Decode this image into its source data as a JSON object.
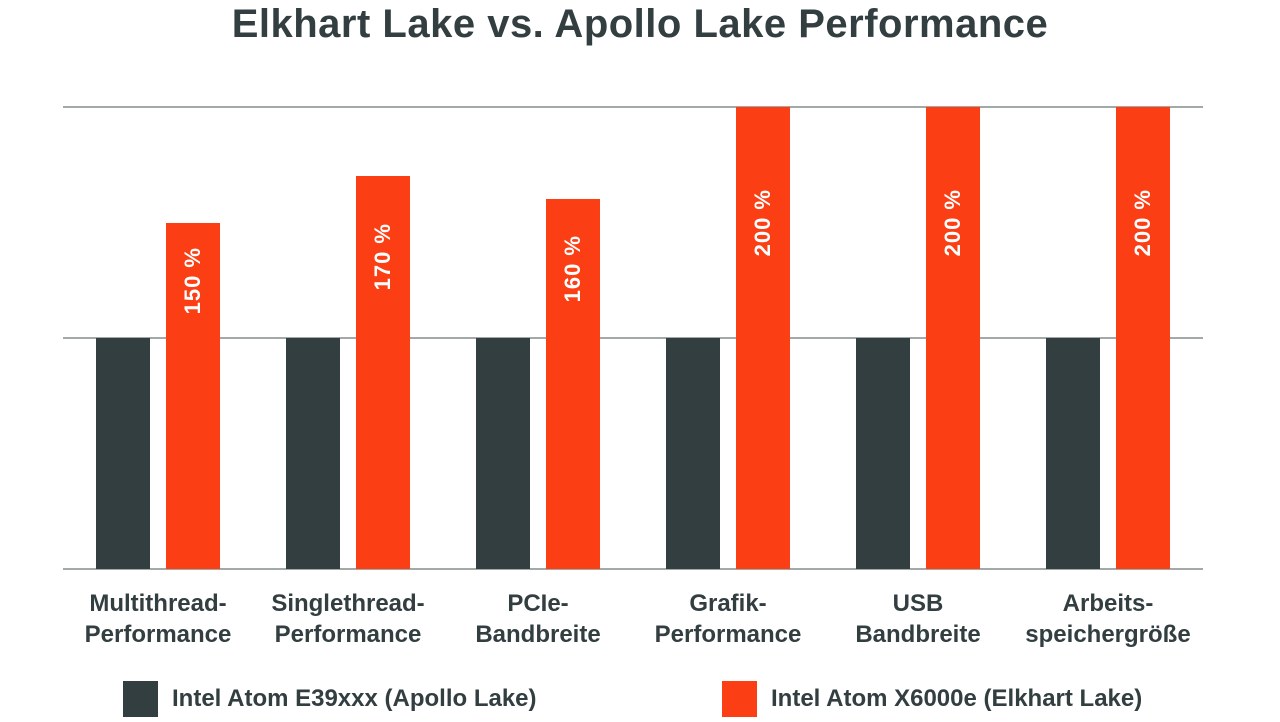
{
  "title": "Elkhart Lake vs. Apollo Lake Performance",
  "colors": {
    "background": "#FFFFFF",
    "dark_series": "#333E40",
    "orange_series": "#FB3E14",
    "gridline": "#A3A9A9",
    "text": "#333E40",
    "value_label_text": "#FFFFFF"
  },
  "chart_data": {
    "type": "bar",
    "title": "Elkhart Lake vs. Apollo Lake Performance",
    "categories": [
      "Multithread-Performance",
      "Singlethread-Performance",
      "PCIe-Bandbreite",
      "Grafik-Performance",
      "USB Bandbreite",
      "Arbeitsspeichergröße"
    ],
    "category_label_lines": [
      [
        "Multithread-",
        "Performance"
      ],
      [
        "Singlethread-",
        "Performance"
      ],
      [
        "PCIe-",
        "Bandbreite"
      ],
      [
        "Grafik-",
        "Performance"
      ],
      [
        "USB",
        "Bandbreite"
      ],
      [
        "Arbeits-",
        "speichergröße"
      ]
    ],
    "series": [
      {
        "name": "Intel Atom E39xxx (Apollo Lake)",
        "color": "#333E40",
        "values": [
          100,
          100,
          100,
          100,
          100,
          100
        ]
      },
      {
        "name": "Intel Atom X6000e (Elkhart Lake)",
        "color": "#FB3E14",
        "values": [
          150,
          170,
          160,
          200,
          200,
          200
        ]
      }
    ],
    "bar_value_labels": [
      "150 %",
      "170 %",
      "160 %",
      "200 %",
      "200 %",
      "200 %"
    ],
    "xlabel": "",
    "ylabel": "",
    "unit": "%",
    "ylim": [
      0,
      200
    ],
    "gridlines_at": [
      100,
      200
    ],
    "grid": true,
    "legend_position": "bottom"
  },
  "legend": {
    "items": [
      {
        "label": "Intel Atom E39xxx (Apollo Lake)",
        "color": "#333E40"
      },
      {
        "label": "Intel Atom X6000e (Elkhart Lake)",
        "color": "#FB3E14"
      }
    ]
  }
}
